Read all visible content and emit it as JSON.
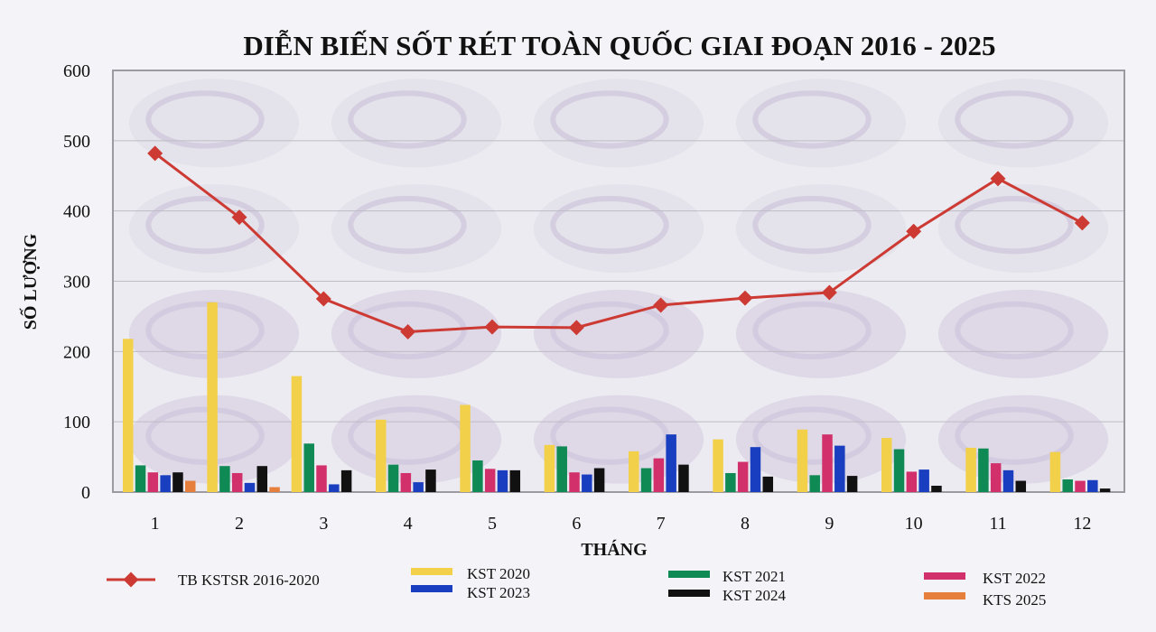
{
  "chart_data": {
    "type": "bar",
    "title": "DIỄN BIẾN SỐT RÉT TOÀN QUỐC GIAI ĐOẠN 2016 - 2025",
    "xlabel": "THÁNG",
    "ylabel": "SỐ LƯỢNG",
    "ylim": [
      0,
      600
    ],
    "yticks": [
      "0",
      "100",
      "200",
      "300",
      "400",
      "500",
      "600"
    ],
    "categories": [
      "1",
      "2",
      "3",
      "4",
      "5",
      "6",
      "7",
      "8",
      "9",
      "10",
      "11",
      "12"
    ],
    "grid": true,
    "legend_position": "bottom",
    "bar_series": [
      {
        "name": "KST 2020",
        "color": "#f2d04a",
        "values": [
          218,
          270,
          165,
          103,
          124,
          67,
          58,
          75,
          89,
          77,
          63,
          57
        ]
      },
      {
        "name": "KST 2021",
        "color": "#0f8a55",
        "values": [
          38,
          37,
          69,
          39,
          45,
          65,
          34,
          27,
          24,
          61,
          62,
          18
        ]
      },
      {
        "name": "KST 2022",
        "color": "#d2306a",
        "values": [
          28,
          27,
          38,
          27,
          33,
          28,
          48,
          43,
          82,
          29,
          41,
          16
        ]
      },
      {
        "name": "KST 2023",
        "color": "#1a3ec0",
        "values": [
          24,
          13,
          11,
          14,
          31,
          25,
          82,
          64,
          66,
          32,
          31,
          17
        ]
      },
      {
        "name": "KST 2024",
        "color": "#111111",
        "values": [
          28,
          37,
          31,
          32,
          31,
          34,
          39,
          22,
          23,
          9,
          16,
          5
        ]
      },
      {
        "name": "KTS 2025",
        "color": "#e67e3c",
        "values": [
          16,
          7,
          0,
          0,
          0,
          0,
          0,
          0,
          0,
          0,
          0,
          0
        ]
      }
    ],
    "line_series": [
      {
        "name": "TB KSTSR 2016-2020",
        "color": "#cc3a33",
        "values": [
          482,
          391,
          275,
          228,
          235,
          234,
          266,
          276,
          284,
          371,
          446,
          383
        ]
      }
    ]
  }
}
